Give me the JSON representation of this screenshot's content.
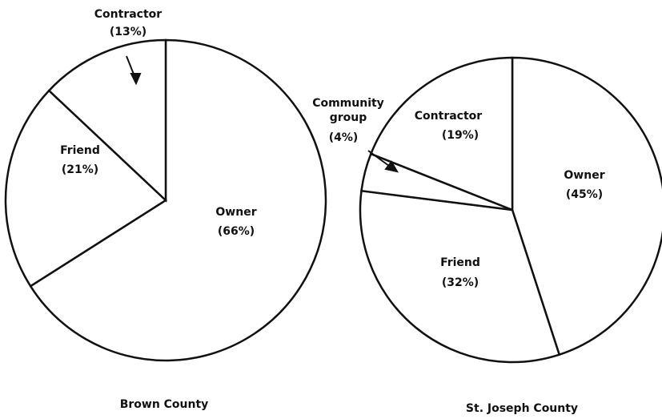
{
  "chart_data": [
    {
      "type": "pie",
      "title": "Brown County",
      "categories": [
        "Owner",
        "Friend",
        "Contractor"
      ],
      "values": [
        66,
        21,
        13
      ],
      "value_labels": [
        "(66%)",
        "(21%)",
        "(13%)"
      ]
    },
    {
      "type": "pie",
      "title": "St. Joseph County",
      "categories": [
        "Owner",
        "Friend",
        "Community group",
        "Contractor"
      ],
      "values": [
        45,
        32,
        4,
        19
      ],
      "value_labels": [
        "(45%)",
        "(32%)",
        "(4%)",
        "(19%)"
      ]
    }
  ]
}
